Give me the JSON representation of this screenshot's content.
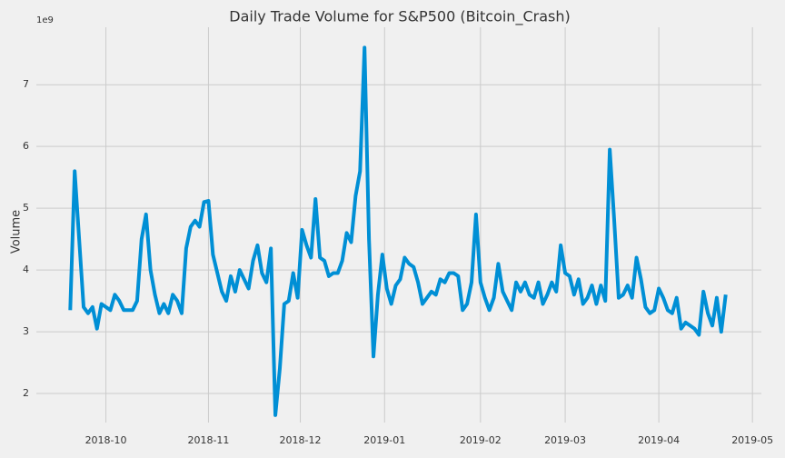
{
  "chart_data": {
    "type": "line",
    "title": "Daily Trade Volume for S&P500 (Bitcoin_Crash)",
    "y_label": "Volume",
    "y_offset_label": "1e9",
    "color": "#008fd5",
    "grid": true,
    "values": [
      3.35,
      5.6,
      4.5,
      3.4,
      3.3,
      3.4,
      3.05,
      3.45,
      3.4,
      3.35,
      3.6,
      3.5,
      3.35,
      3.35,
      3.35,
      3.5,
      4.5,
      4.9,
      4.0,
      3.6,
      3.3,
      3.45,
      3.3,
      3.6,
      3.5,
      3.3,
      4.35,
      4.7,
      4.8,
      4.7,
      5.1,
      5.12,
      4.25,
      3.95,
      3.65,
      3.5,
      3.9,
      3.65,
      4.0,
      3.85,
      3.7,
      4.15,
      4.4,
      3.95,
      3.8,
      4.35,
      1.65,
      2.4,
      3.45,
      3.5,
      3.95,
      3.55,
      4.65,
      4.4,
      4.2,
      5.15,
      4.2,
      4.15,
      3.9,
      3.95,
      3.95,
      4.15,
      4.6,
      4.45,
      5.2,
      5.6,
      7.6,
      4.5,
      2.6,
      3.6,
      4.25,
      3.7,
      3.45,
      3.75,
      3.85,
      4.2,
      4.1,
      4.05,
      3.8,
      3.45,
      3.55,
      3.65,
      3.6,
      3.85,
      3.8,
      3.95,
      3.95,
      3.9,
      3.35,
      3.45,
      3.8,
      4.9,
      3.8,
      3.55,
      3.35,
      3.55,
      4.1,
      3.65,
      3.5,
      3.35,
      3.8,
      3.65,
      3.8,
      3.6,
      3.55,
      3.8,
      3.45,
      3.6,
      3.8,
      3.65,
      4.4,
      3.95,
      3.9,
      3.6,
      3.85,
      3.45,
      3.55,
      3.75,
      3.45,
      3.75,
      3.5,
      5.95,
      4.8,
      3.55,
      3.6,
      3.75,
      3.55,
      4.2,
      3.85,
      3.4,
      3.3,
      3.35,
      3.7,
      3.55,
      3.35,
      3.3,
      3.55,
      3.05,
      3.15,
      3.1,
      3.05,
      2.95,
      3.65,
      3.3,
      3.1,
      3.55,
      3.0,
      3.6
    ],
    "xlim": [
      -7.6,
      155
    ],
    "xticks": [
      {
        "value": 8,
        "label": "2018-10"
      },
      {
        "value": 31,
        "label": "2018-11"
      },
      {
        "value": 51.6,
        "label": "2018-12"
      },
      {
        "value": 70.5,
        "label": "2019-01"
      },
      {
        "value": 92,
        "label": "2019-02"
      },
      {
        "value": 111,
        "label": "2019-03"
      },
      {
        "value": 132,
        "label": "2019-04"
      },
      {
        "value": 153,
        "label": "2019-05"
      }
    ],
    "ylim": [
      1.53,
      7.93
    ],
    "yticks": [
      2,
      3,
      4,
      5,
      6,
      7
    ]
  }
}
